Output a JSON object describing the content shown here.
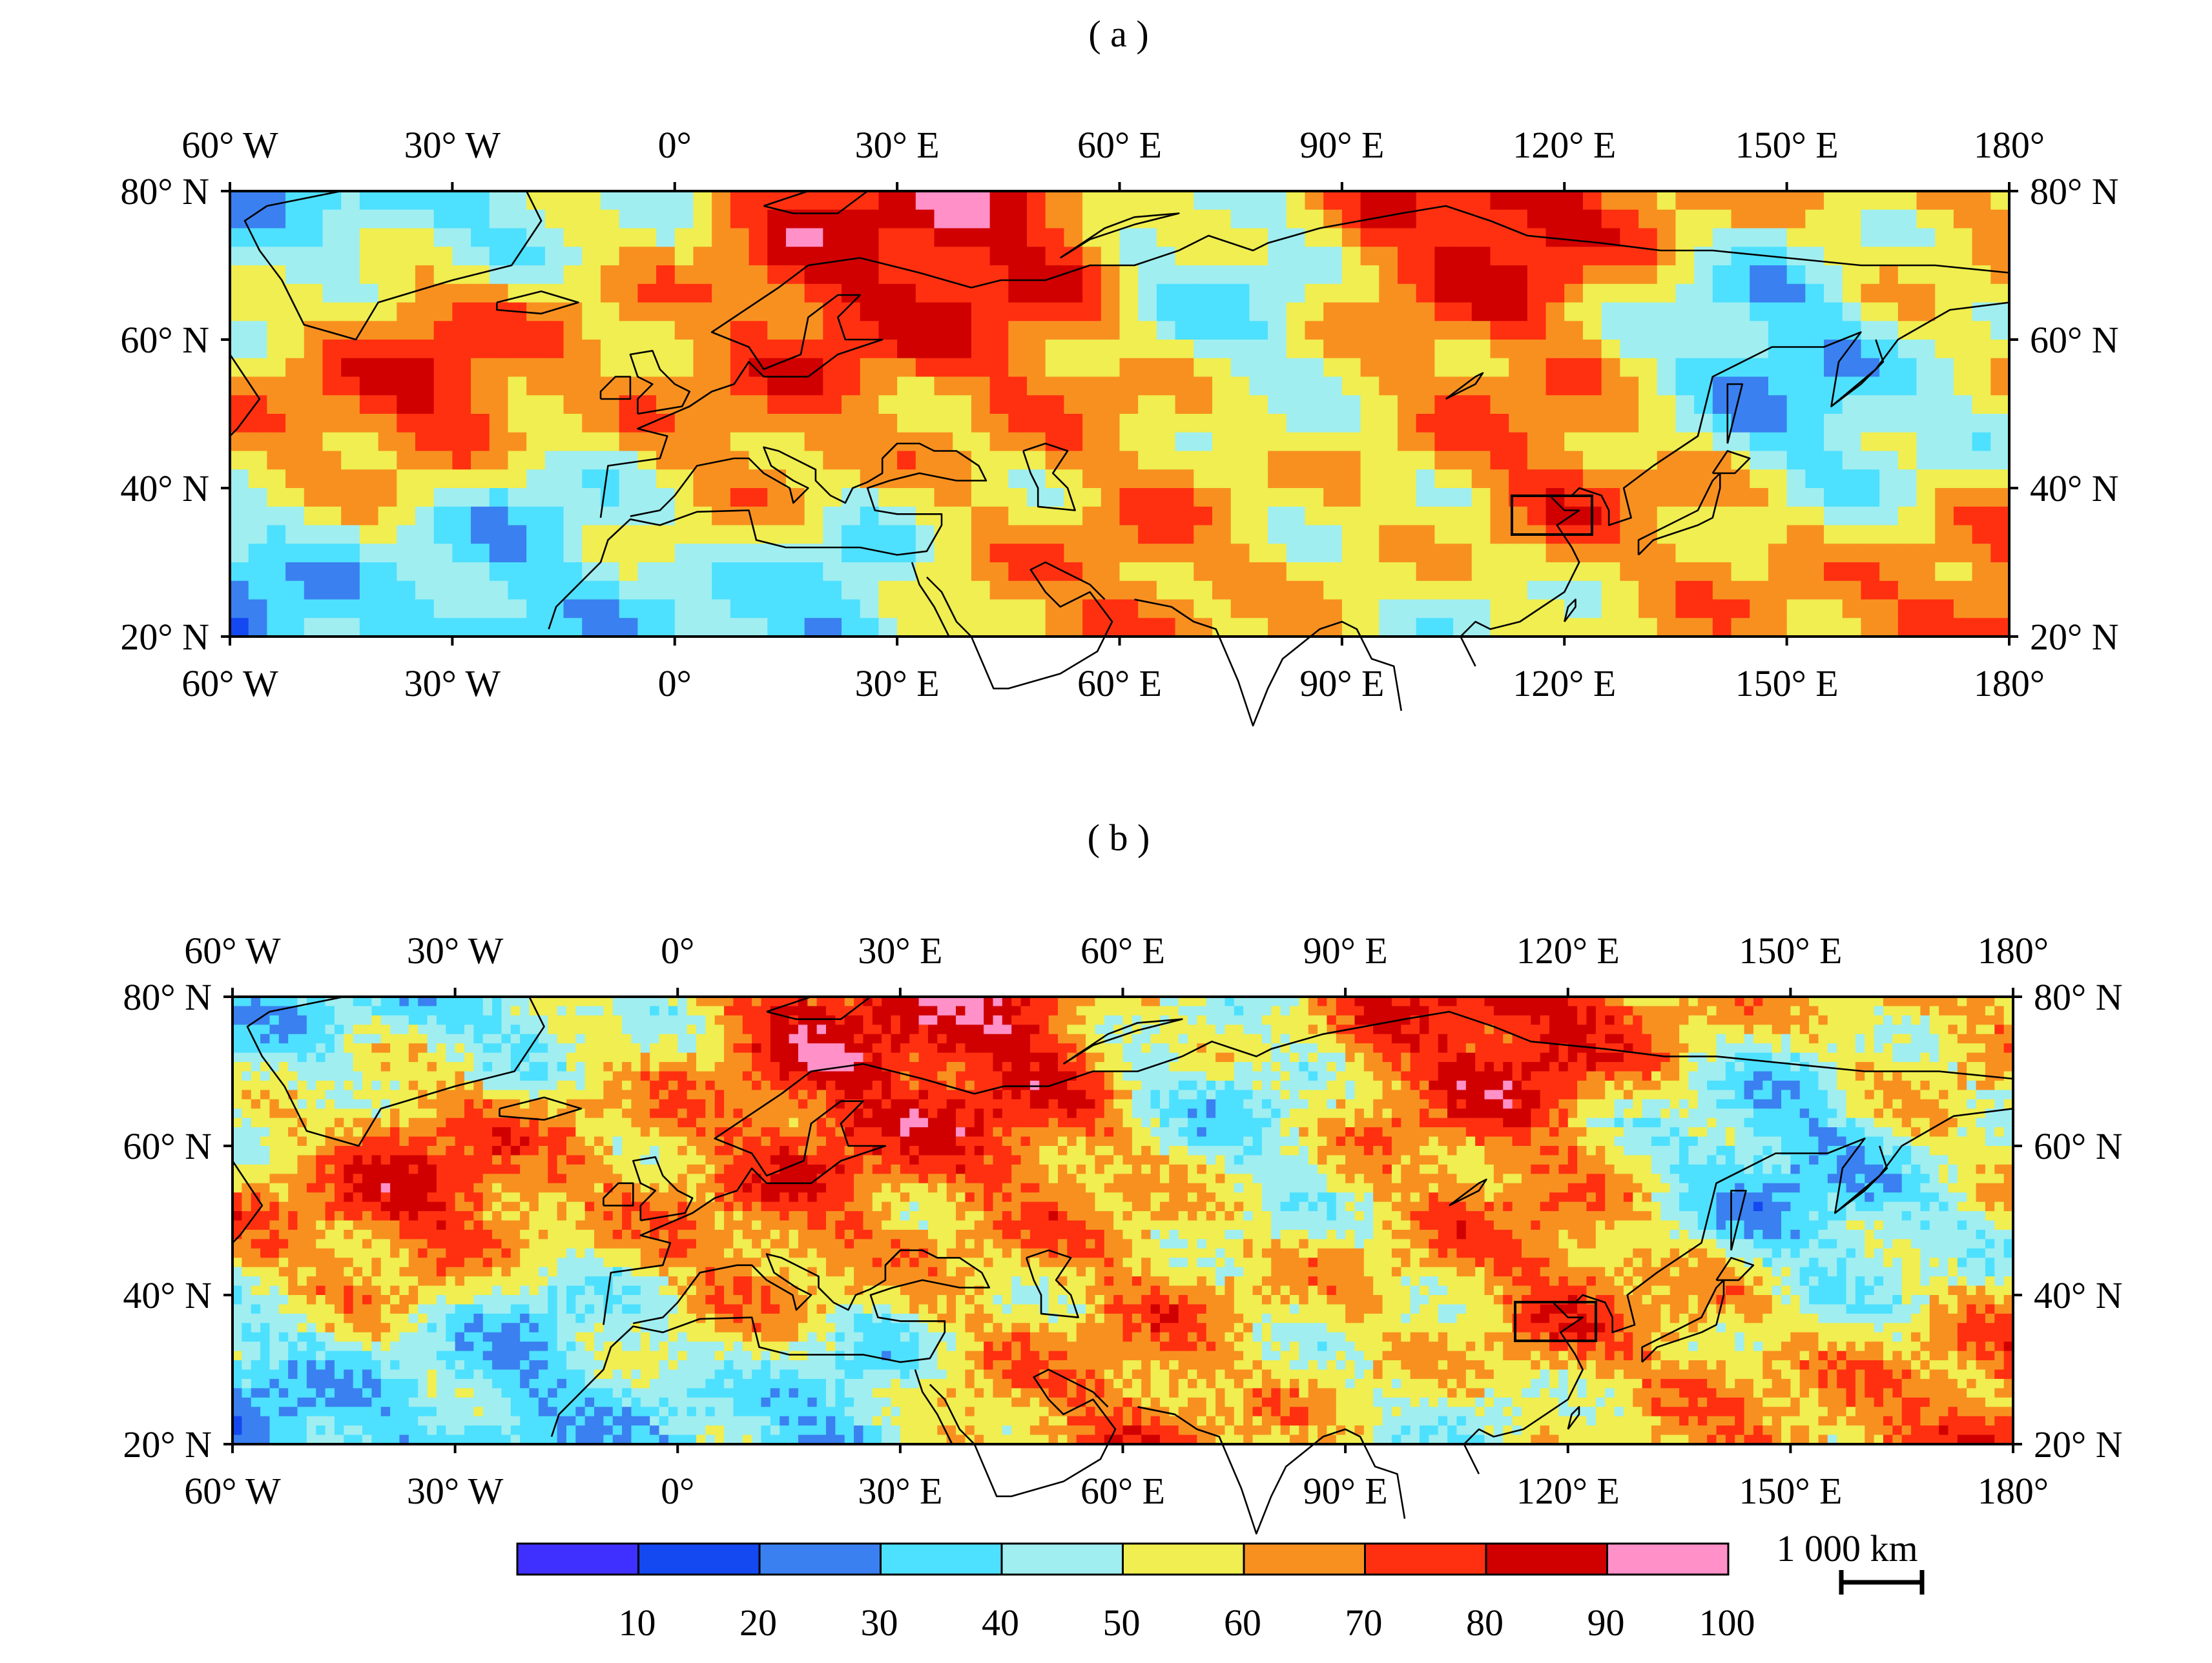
{
  "panels": [
    {
      "id": "a",
      "title": "( a )",
      "lon_ticks": [
        "60° W",
        "30° W",
        "0°",
        "30° E",
        "60° E",
        "90° E",
        "120° E",
        "150° E",
        "180°"
      ],
      "lat_ticks": [
        "80° N",
        "60° N",
        "40° N",
        "20° N"
      ],
      "region_box": {
        "lon": [
          113,
          124
        ],
        "lat": [
          34,
          39
        ]
      }
    },
    {
      "id": "b",
      "title": "( b )",
      "lon_ticks": [
        "60° W",
        "30° W",
        "0°",
        "30° E",
        "60° E",
        "90° E",
        "120° E",
        "150° E",
        "180°"
      ],
      "lat_ticks": [
        "80° N",
        "60° N",
        "40° N",
        "20° N"
      ],
      "region_box": {
        "lon": [
          113,
          124
        ],
        "lat": [
          34,
          39
        ]
      }
    }
  ],
  "map_extent": {
    "lon": [
      -60,
      180
    ],
    "lat": [
      20,
      80
    ]
  },
  "colorbar": {
    "colors": [
      "#4030ff",
      "#1448f0",
      "#3a80f0",
      "#4ee0ff",
      "#a0eef0",
      "#f0ee50",
      "#f89020",
      "#ff3010",
      "#d00000",
      "#ff90c8"
    ],
    "tick_labels": [
      "10",
      "20",
      "30",
      "40",
      "50",
      "60",
      "70",
      "80",
      "90",
      "100"
    ]
  },
  "scale_bar": {
    "label": "1 000 km"
  }
}
